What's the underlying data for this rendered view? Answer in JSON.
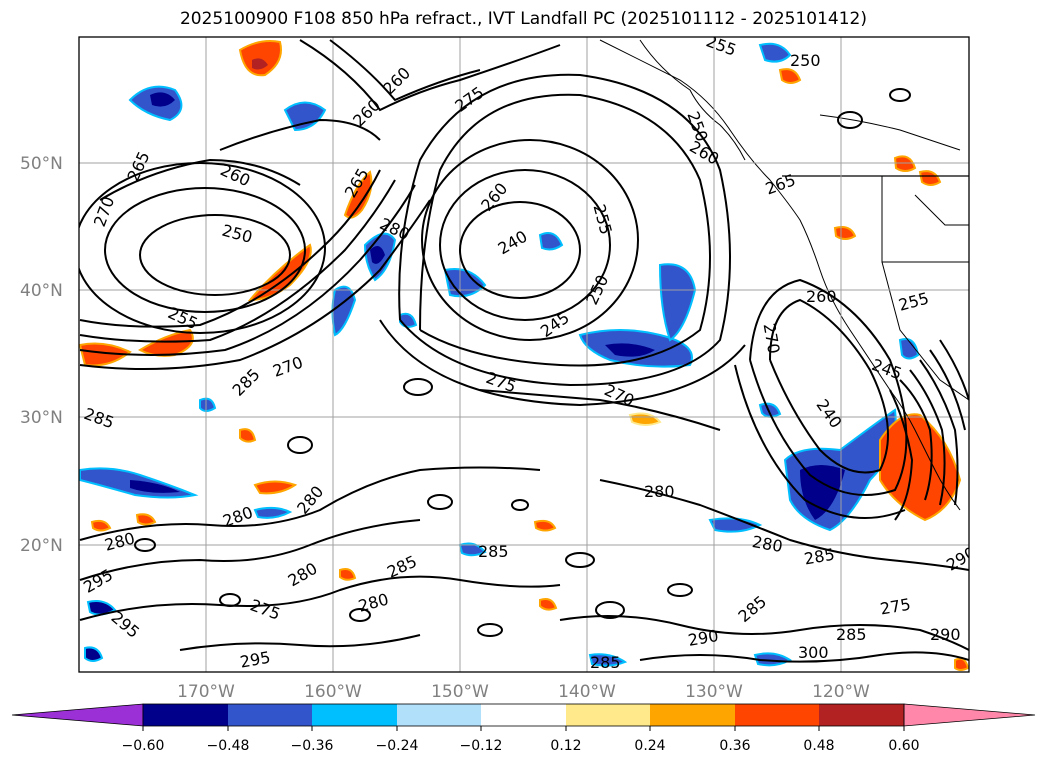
{
  "title": "2025100900 F108 850 hPa refract., IVT Landfall PC (2025101112 - 2025101412)",
  "map": {
    "latitude_labels": [
      "50°N",
      "40°N",
      "30°N",
      "20°N"
    ],
    "longitude_labels": [
      "170°W",
      "160°W",
      "150°W",
      "140°W",
      "130°W",
      "120°W"
    ],
    "contour_labels": [
      "270",
      "265",
      "260",
      "260",
      "275",
      "255",
      "250",
      "260",
      "265",
      "260",
      "250",
      "260",
      "280",
      "240",
      "255",
      "265",
      "250",
      "255",
      "245",
      "250",
      "260",
      "270",
      "255",
      "285",
      "270",
      "275",
      "245",
      "285",
      "270",
      "240",
      "280",
      "280",
      "280",
      "280",
      "285",
      "280",
      "285",
      "285",
      "280",
      "290",
      "275",
      "285",
      "280",
      "290",
      "275",
      "295",
      "300",
      "295",
      "285",
      "285",
      "295",
      "290"
    ]
  },
  "colorbar": {
    "tick_labels": [
      "−0.60",
      "−0.48",
      "−0.36",
      "−0.24",
      "−0.12",
      "0.12",
      "0.24",
      "0.36",
      "0.48",
      "0.60"
    ],
    "colors": [
      "#9b30d6",
      "#00008b",
      "#3355cc",
      "#00bfff",
      "#b0e0fa",
      "#ffffff",
      "#ffe98a",
      "#ffa500",
      "#ff4500",
      "#b22222",
      "#ff88aa"
    ],
    "extend": "both"
  }
}
